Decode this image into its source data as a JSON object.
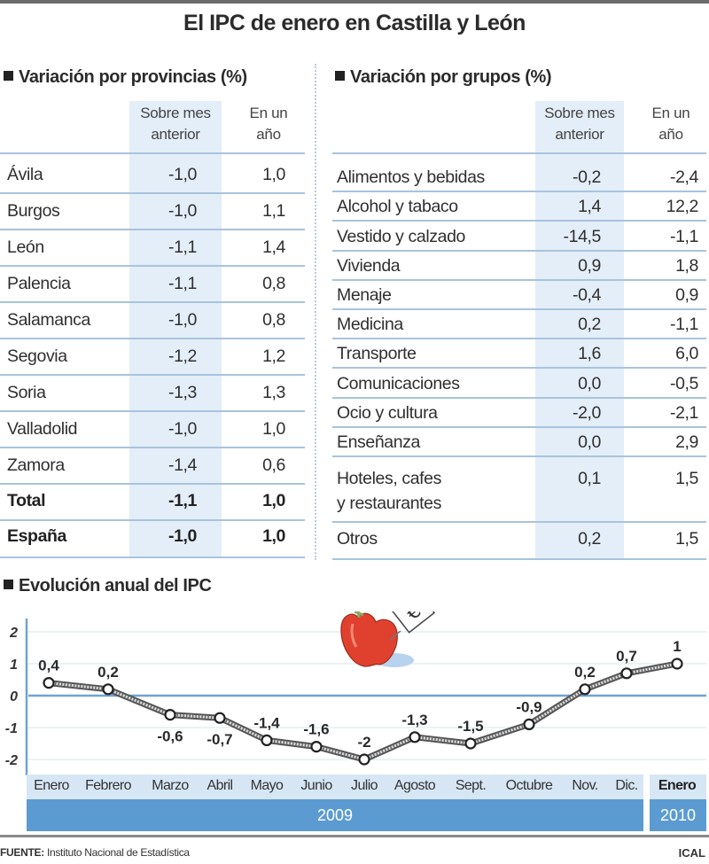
{
  "title": "El IPC de enero en Castilla y León",
  "provincias": {
    "heading": "Variación por provincias (%)",
    "col_headers": {
      "mes_line1": "Sobre mes",
      "mes_line2": "anterior",
      "anio_line1": "En un",
      "anio_line2": "año"
    },
    "rows": [
      {
        "name": "Ávila",
        "mes": "-1,0",
        "anio": "1,0"
      },
      {
        "name": "Burgos",
        "mes": "-1,0",
        "anio": "1,1"
      },
      {
        "name": "León",
        "mes": "-1,1",
        "anio": "1,4"
      },
      {
        "name": "Palencia",
        "mes": "-1,1",
        "anio": "0,8"
      },
      {
        "name": "Salamanca",
        "mes": "-1,0",
        "anio": "0,8"
      },
      {
        "name": "Segovia",
        "mes": "-1,2",
        "anio": "1,2"
      },
      {
        "name": "Soria",
        "mes": "-1,3",
        "anio": "1,3"
      },
      {
        "name": "Valladolid",
        "mes": "-1,0",
        "anio": "1,0"
      },
      {
        "name": "Zamora",
        "mes": "-1,4",
        "anio": "0,6"
      },
      {
        "name": "Total",
        "mes": "-1,1",
        "anio": "1,0"
      },
      {
        "name": "España",
        "mes": "-1,0",
        "anio": "1,0"
      }
    ]
  },
  "grupos": {
    "heading": "Variación por grupos (%)",
    "col_headers": {
      "mes_line1": "Sobre mes",
      "mes_line2": "anterior",
      "anio_line1": "En un",
      "anio_line2": "año"
    },
    "rows": [
      {
        "name": "Alimentos y bebidas",
        "mes": "-0,2",
        "anio": "-2,4"
      },
      {
        "name": "Alcohol y tabaco",
        "mes": "1,4",
        "anio": "12,2"
      },
      {
        "name": "Vestido y calzado",
        "mes": "-14,5",
        "anio": "-1,1"
      },
      {
        "name": "Vivienda",
        "mes": "0,9",
        "anio": "1,8"
      },
      {
        "name": "Menaje",
        "mes": "-0,4",
        "anio": "0,9"
      },
      {
        "name": "Medicina",
        "mes": "0,2",
        "anio": "-1,1"
      },
      {
        "name": "Transporte",
        "mes": "1,6",
        "anio": "6,0"
      },
      {
        "name": "Comunicaciones",
        "mes": "0,0",
        "anio": "-0,5"
      },
      {
        "name": "Ocio y cultura",
        "mes": "-2,0",
        "anio": "-2,1"
      },
      {
        "name": "Enseñanza",
        "mes": "0,0",
        "anio": "2,9"
      },
      {
        "name": "Hoteles, cafes",
        "name_line2": "y restaurantes",
        "mes": "0,1",
        "anio": "1,5"
      },
      {
        "name": "Otros",
        "mes": "0,2",
        "anio": "1,5"
      }
    ]
  },
  "evolucion": {
    "heading": "Evolución anual del IPC",
    "year_2009": "2009",
    "year_2010": "2010"
  },
  "footer": {
    "source_label": "FUENTE:",
    "source": " Instituto Nacional de Estadística",
    "credit": "ICAL"
  },
  "chart_data": {
    "type": "line",
    "title": "Evolución anual del IPC",
    "xlabel": "",
    "ylabel": "",
    "ylim": [
      -2,
      2
    ],
    "yticks": [
      2,
      1,
      0,
      -1,
      -2
    ],
    "grid": true,
    "categories": [
      "Enero",
      "Febrero",
      "Marzo",
      "Abril",
      "Mayo",
      "Junio",
      "Julio",
      "Agosto",
      "Sept.",
      "Octubre",
      "Nov.",
      "Dic.",
      "Enero"
    ],
    "year_groups": [
      {
        "label": "2009",
        "from": 0,
        "to": 11
      },
      {
        "label": "2010",
        "from": 12,
        "to": 12
      }
    ],
    "values": [
      0.4,
      0.2,
      -0.6,
      -0.7,
      -1.4,
      -1.6,
      -2,
      -1.3,
      -1.5,
      -0.9,
      0.2,
      0.7,
      1
    ],
    "data_labels": [
      "0,4",
      "0,2",
      "-0,6",
      "-0,7",
      "-1,4",
      "-1,6",
      "-2",
      "-1,3",
      "-1,5",
      "-0,9",
      "0,2",
      "0,7",
      "1"
    ],
    "annotation": "apple-with-euro-sign illustration"
  }
}
